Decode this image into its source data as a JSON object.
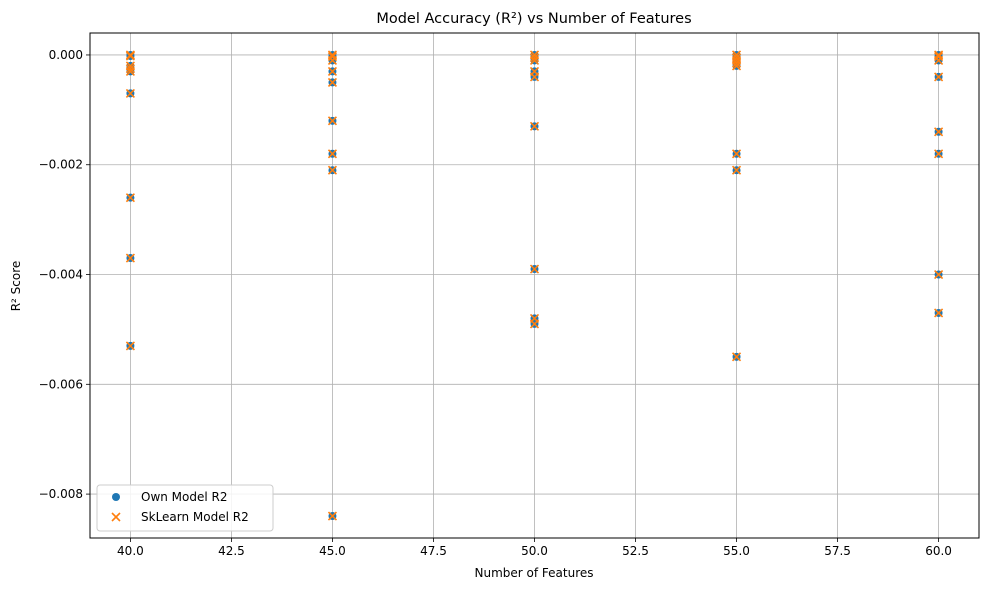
{
  "chart_data": {
    "type": "scatter",
    "title": "Model Accuracy (R²) vs Number of Features",
    "xlabel": "Number of Features",
    "ylabel": "R² Score",
    "xlim": [
      39,
      61
    ],
    "ylim": [
      -0.0088,
      0.0004
    ],
    "grid": true,
    "legend_position": "lower-left",
    "x_ticks": [
      40.0,
      42.5,
      45.0,
      47.5,
      50.0,
      52.5,
      55.0,
      57.5,
      60.0
    ],
    "x_tick_labels": [
      "40.0",
      "42.5",
      "45.0",
      "47.5",
      "50.0",
      "52.5",
      "55.0",
      "57.5",
      "60.0"
    ],
    "y_ticks": [
      0.0,
      -0.002,
      -0.004,
      -0.006,
      -0.008
    ],
    "y_tick_labels": [
      "0.000",
      "−0.002",
      "−0.004",
      "−0.006",
      "−0.008"
    ],
    "series": [
      {
        "name": "Own Model R2",
        "marker": "circle",
        "color": "#1f77b4",
        "points": [
          [
            40,
            0.0
          ],
          [
            40,
            -2e-05
          ],
          [
            40,
            -0.0002
          ],
          [
            40,
            -0.00025
          ],
          [
            40,
            -0.0003
          ],
          [
            40,
            -0.0007
          ],
          [
            40,
            -0.0026
          ],
          [
            40,
            -0.0037
          ],
          [
            40,
            -0.0053
          ],
          [
            45,
            0.0
          ],
          [
            45,
            -3e-05
          ],
          [
            45,
            -0.0001
          ],
          [
            45,
            -0.0003
          ],
          [
            45,
            -0.0005
          ],
          [
            45,
            -0.0012
          ],
          [
            45,
            -0.0018
          ],
          [
            45,
            -0.0021
          ],
          [
            45,
            -0.0084
          ],
          [
            50,
            0.0
          ],
          [
            50,
            -5e-05
          ],
          [
            50,
            -0.0001
          ],
          [
            50,
            -0.0003
          ],
          [
            50,
            -0.0004
          ],
          [
            50,
            -0.0013
          ],
          [
            50,
            -0.0039
          ],
          [
            50,
            -0.0048
          ],
          [
            50,
            -0.0049
          ],
          [
            55,
            0.0
          ],
          [
            55,
            -5e-05
          ],
          [
            55,
            -0.0001
          ],
          [
            55,
            -0.00015
          ],
          [
            55,
            -0.0002
          ],
          [
            55,
            -0.0018
          ],
          [
            55,
            -0.0021
          ],
          [
            55,
            -0.0055
          ],
          [
            60,
            0.0
          ],
          [
            60,
            -3e-05
          ],
          [
            60,
            -0.0001
          ],
          [
            60,
            -0.0004
          ],
          [
            60,
            -0.0014
          ],
          [
            60,
            -0.0018
          ],
          [
            60,
            -0.004
          ],
          [
            60,
            -0.0047
          ]
        ]
      },
      {
        "name": "SkLearn Model R2",
        "marker": "x",
        "color": "#ff7f0e",
        "points": [
          [
            40,
            0.0
          ],
          [
            40,
            -2e-05
          ],
          [
            40,
            -0.0002
          ],
          [
            40,
            -0.00025
          ],
          [
            40,
            -0.0003
          ],
          [
            40,
            -0.0007
          ],
          [
            40,
            -0.0026
          ],
          [
            40,
            -0.0037
          ],
          [
            40,
            -0.0053
          ],
          [
            45,
            0.0
          ],
          [
            45,
            -3e-05
          ],
          [
            45,
            -0.0001
          ],
          [
            45,
            -0.0003
          ],
          [
            45,
            -0.0005
          ],
          [
            45,
            -0.0012
          ],
          [
            45,
            -0.0018
          ],
          [
            45,
            -0.0021
          ],
          [
            45,
            -0.0084
          ],
          [
            50,
            0.0
          ],
          [
            50,
            -5e-05
          ],
          [
            50,
            -0.0001
          ],
          [
            50,
            -0.0003
          ],
          [
            50,
            -0.0004
          ],
          [
            50,
            -0.0013
          ],
          [
            50,
            -0.0039
          ],
          [
            50,
            -0.0048
          ],
          [
            50,
            -0.0049
          ],
          [
            55,
            0.0
          ],
          [
            55,
            -5e-05
          ],
          [
            55,
            -0.0001
          ],
          [
            55,
            -0.00015
          ],
          [
            55,
            -0.0002
          ],
          [
            55,
            -0.0018
          ],
          [
            55,
            -0.0021
          ],
          [
            55,
            -0.0055
          ],
          [
            60,
            0.0
          ],
          [
            60,
            -3e-05
          ],
          [
            60,
            -0.0001
          ],
          [
            60,
            -0.0004
          ],
          [
            60,
            -0.0014
          ],
          [
            60,
            -0.0018
          ],
          [
            60,
            -0.004
          ],
          [
            60,
            -0.0047
          ]
        ]
      }
    ]
  }
}
